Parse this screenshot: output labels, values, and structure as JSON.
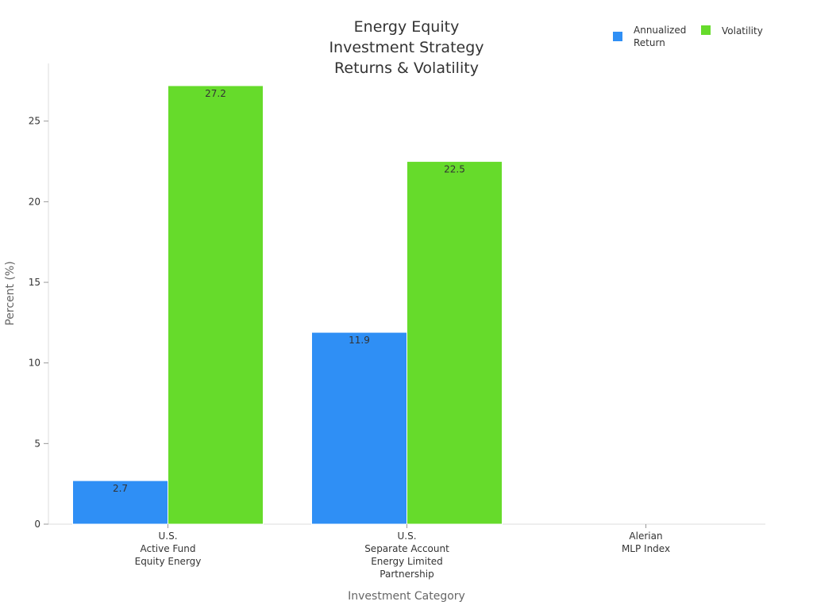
{
  "chart_data": {
    "type": "bar",
    "title_lines": [
      "Energy Equity",
      "Investment Strategy",
      "Returns & Volatility"
    ],
    "xlabel": "Investment Category",
    "ylabel": "Percent (%)",
    "ylim": [
      0,
      27.2
    ],
    "yticks": [
      0,
      5,
      10,
      15,
      20,
      25
    ],
    "categories": [
      [
        "U.S.",
        "Active Fund",
        "Equity Energy"
      ],
      [
        "U.S.",
        "Separate Account",
        "Energy Limited",
        "Partnership"
      ],
      [
        "Alerian",
        "MLP Index"
      ]
    ],
    "series": [
      {
        "name_lines": [
          "Annualized",
          "Return"
        ],
        "color": "#2f8ff5",
        "values": [
          2.7,
          11.9,
          null
        ]
      },
      {
        "name_lines": [
          "Volatility"
        ],
        "color": "#66db2b",
        "values": [
          27.2,
          22.5,
          null
        ]
      }
    ],
    "legend_position": "top-right",
    "grid": false
  }
}
